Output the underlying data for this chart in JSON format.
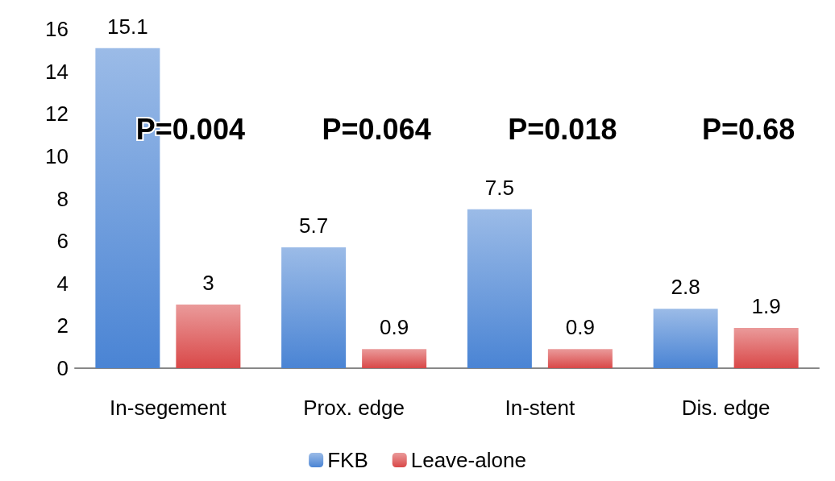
{
  "chart_data": {
    "type": "bar",
    "categories": [
      "In-segement",
      "Prox. edge",
      "In-stent",
      "Dis. edge"
    ],
    "series": [
      {
        "name": "FKB",
        "color": "#4a84d4",
        "values": [
          15.1,
          5.7,
          7.5,
          2.8
        ]
      },
      {
        "name": "Leave-alone",
        "color": "#d94848",
        "values": [
          3,
          0.9,
          0.9,
          1.9
        ]
      }
    ],
    "ylim": [
      0,
      16
    ],
    "yticks": [
      0,
      2,
      4,
      6,
      8,
      10,
      12,
      14,
      16
    ],
    "grid": false,
    "legend": "bottom",
    "data_labels": true,
    "annotations": [
      "P=0.004",
      "P=0.064",
      "P=0.018",
      "P=0.68"
    ]
  }
}
